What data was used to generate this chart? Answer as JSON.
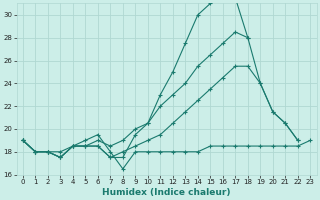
{
  "xlabel": "Humidex (Indice chaleur)",
  "xlim": [
    -0.5,
    23.5
  ],
  "ylim": [
    16,
    31
  ],
  "xticks": [
    0,
    1,
    2,
    3,
    4,
    5,
    6,
    7,
    8,
    9,
    10,
    11,
    12,
    13,
    14,
    15,
    16,
    17,
    18,
    19,
    20,
    21,
    22,
    23
  ],
  "yticks": [
    16,
    18,
    20,
    22,
    24,
    26,
    28,
    30
  ],
  "bg_color": "#cceee8",
  "grid_color": "#b0d8d2",
  "line_color": "#1a7a6e",
  "lines": [
    {
      "x": [
        0,
        1,
        2,
        3,
        4,
        5,
        6,
        7,
        8,
        9,
        10,
        11,
        12,
        13,
        14,
        15,
        16,
        17,
        18
      ],
      "y": [
        19.0,
        18.0,
        18.0,
        17.5,
        18.5,
        18.5,
        18.5,
        17.5,
        17.5,
        19.5,
        20.5,
        23.0,
        25.0,
        27.5,
        30.0,
        31.0,
        31.5,
        31.5,
        28.0
      ]
    },
    {
      "x": [
        0,
        1,
        2,
        3,
        4,
        5,
        6,
        7,
        8,
        9,
        10,
        11,
        12,
        13,
        14,
        15,
        16,
        17,
        18,
        19,
        20,
        21,
        22
      ],
      "y": [
        19.0,
        18.0,
        18.0,
        17.5,
        18.5,
        18.5,
        19.0,
        18.5,
        19.0,
        20.0,
        20.5,
        22.0,
        23.0,
        24.0,
        25.5,
        26.5,
        27.5,
        28.5,
        28.0,
        24.0,
        21.5,
        20.5,
        19.0
      ]
    },
    {
      "x": [
        0,
        1,
        2,
        3,
        4,
        5,
        6,
        7,
        8,
        9,
        10,
        11,
        12,
        13,
        14,
        15,
        16,
        17,
        18,
        19,
        20,
        21,
        22,
        23
      ],
      "y": [
        19.0,
        18.0,
        18.0,
        18.0,
        18.5,
        19.0,
        19.5,
        18.0,
        16.5,
        18.0,
        18.0,
        18.0,
        18.0,
        18.0,
        18.0,
        18.5,
        18.5,
        18.5,
        18.5,
        18.5,
        18.5,
        18.5,
        18.5,
        19.0
      ]
    },
    {
      "x": [
        0,
        1,
        2,
        3,
        4,
        5,
        6,
        7,
        8,
        9,
        10,
        11,
        12,
        13,
        14,
        15,
        16,
        17,
        18,
        19,
        20,
        21,
        22
      ],
      "y": [
        19.0,
        18.0,
        18.0,
        17.5,
        18.5,
        18.5,
        18.5,
        17.5,
        18.0,
        18.5,
        19.0,
        19.5,
        20.5,
        21.5,
        22.5,
        23.5,
        24.5,
        25.5,
        25.5,
        24.0,
        21.5,
        20.5,
        19.0
      ]
    }
  ]
}
